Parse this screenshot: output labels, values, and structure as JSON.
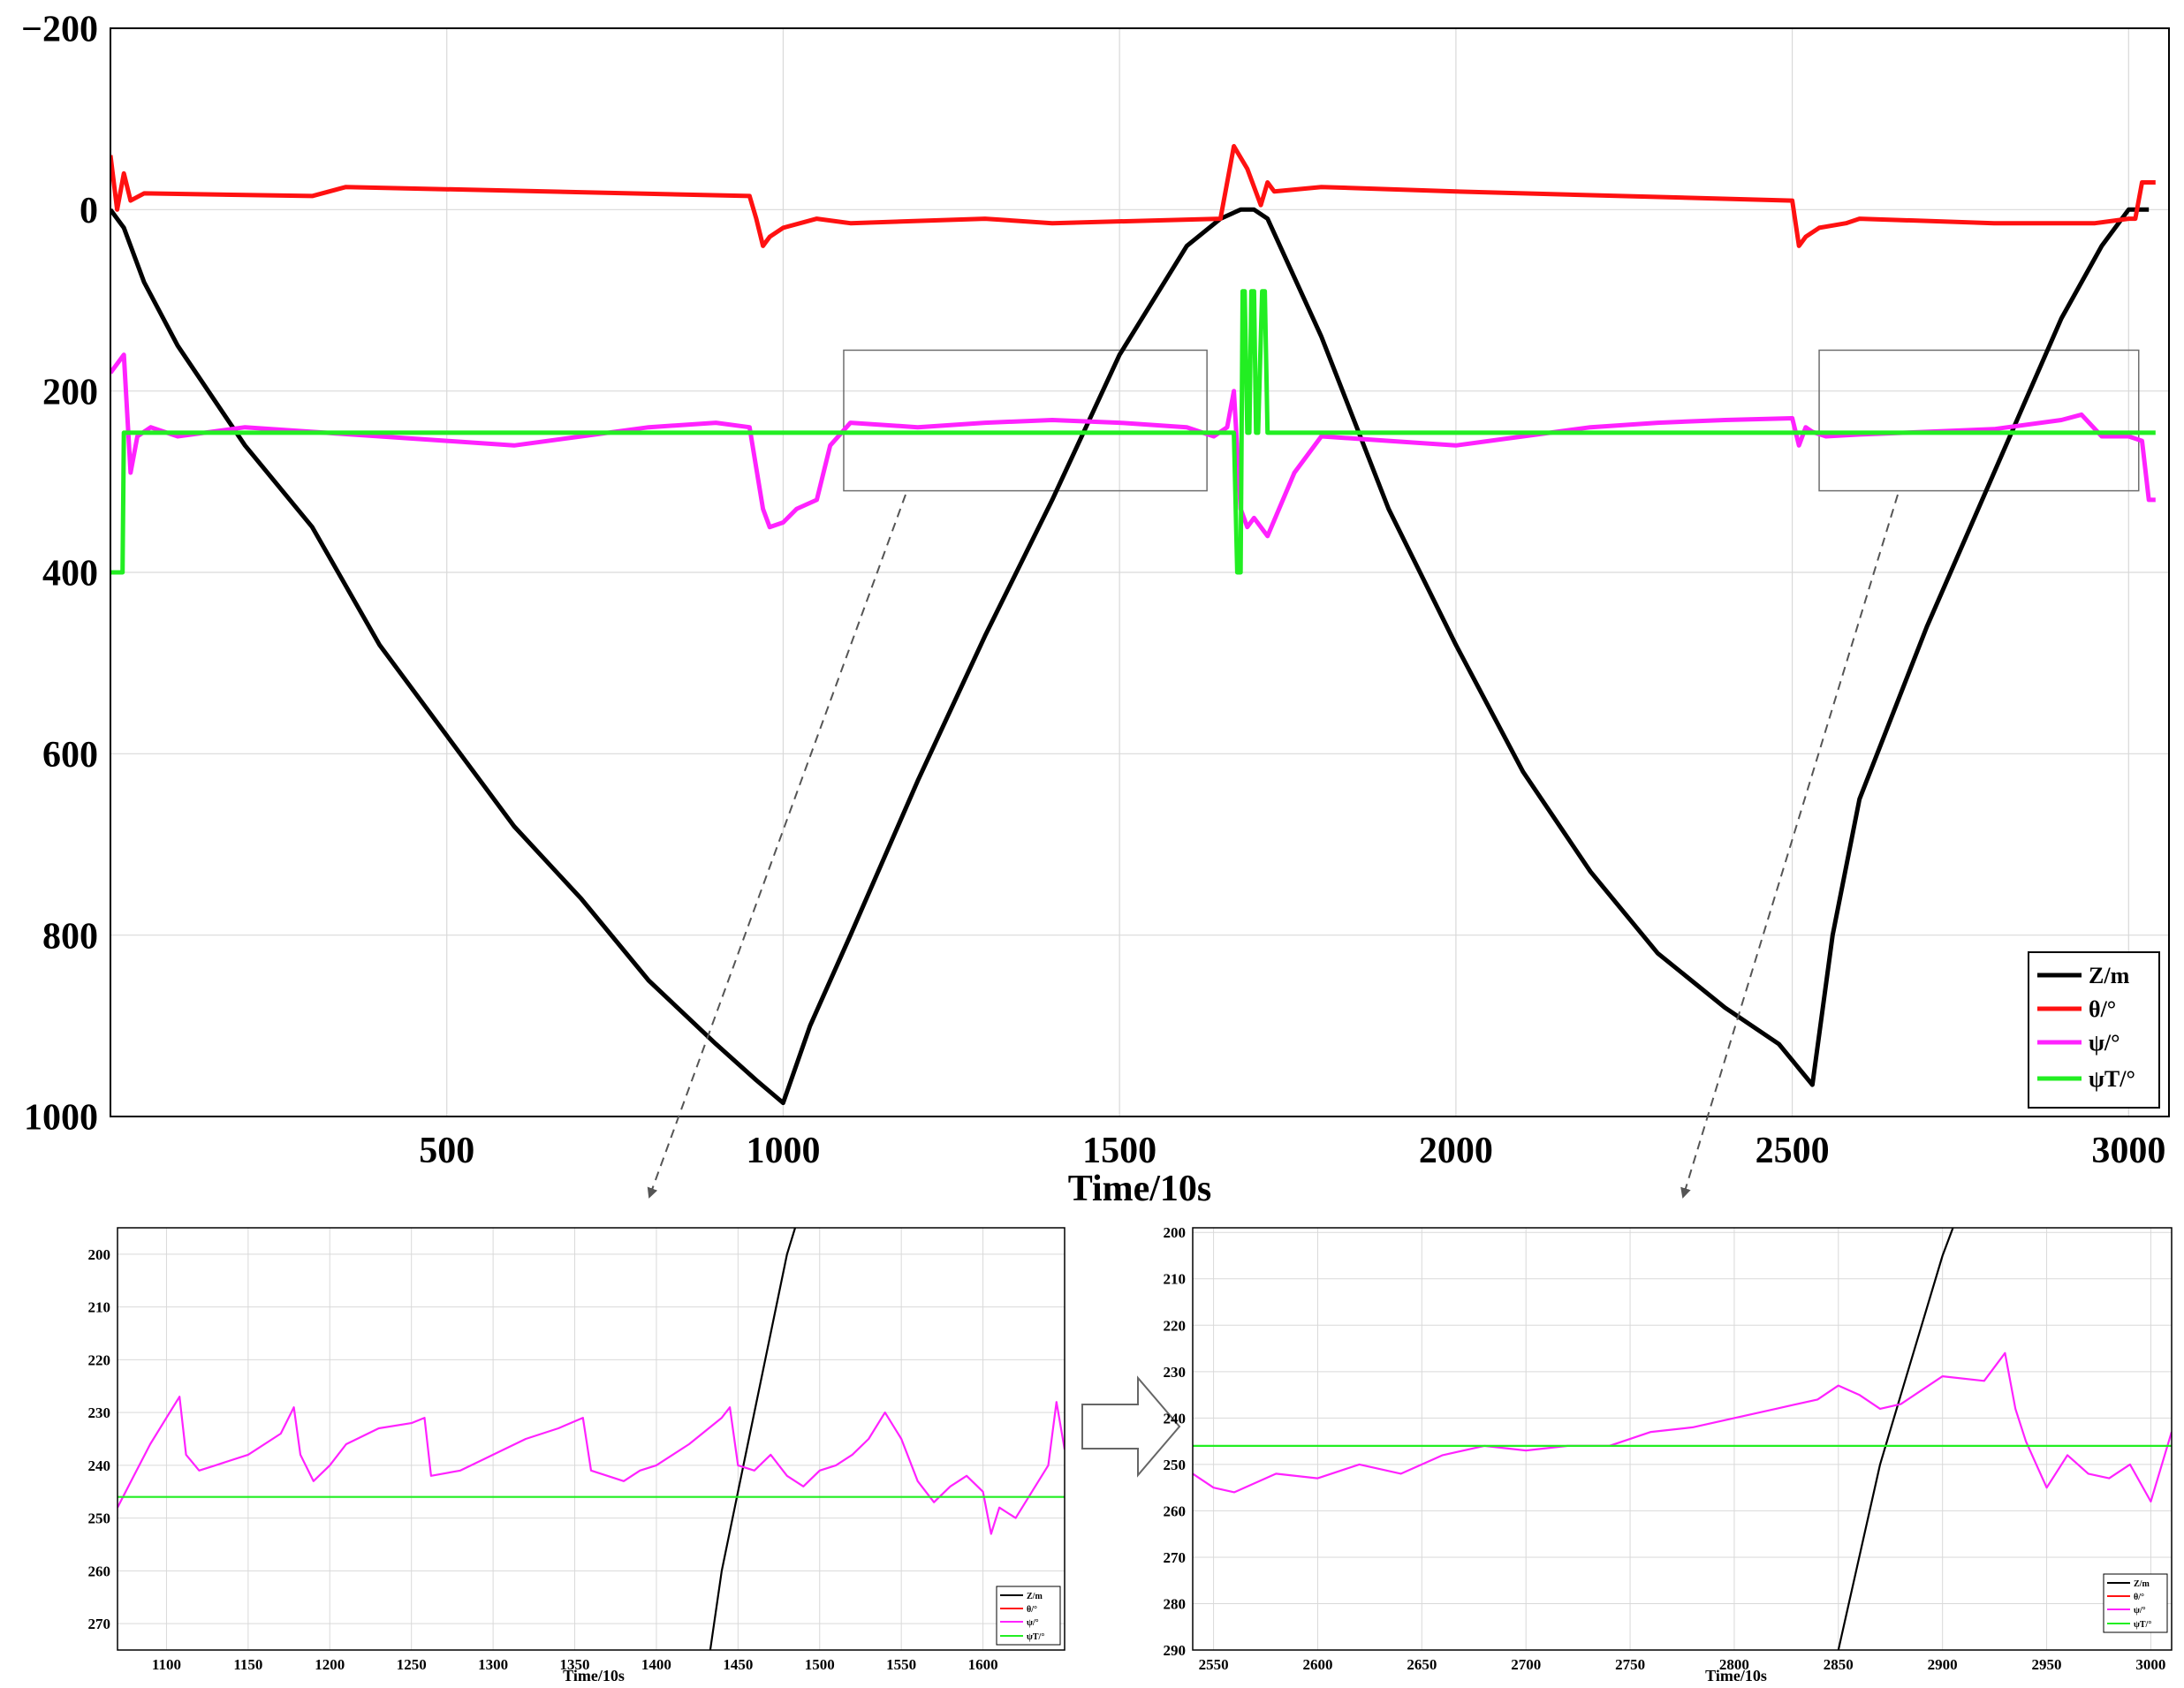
{
  "colors": {
    "z": "#000000",
    "theta": "#ff1111",
    "psi": "#ff22ff",
    "psi_t": "#22ee22",
    "grid": "#d9d9d9",
    "frame": "#000000",
    "zoom_box": "#6e6e6e"
  },
  "chart_data": [
    {
      "id": "main",
      "type": "line",
      "xlabel": "Time/10s",
      "ylabel": "",
      "xlim": [
        0,
        3060
      ],
      "ylim": [
        -200,
        1000
      ],
      "y_inverted": true,
      "x_ticks": [
        "500",
        "1000",
        "1500",
        "2000",
        "2500",
        "3000"
      ],
      "x_tick_values": [
        500,
        1000,
        1500,
        2000,
        2500,
        3000
      ],
      "y_ticks": [
        "−200",
        "0",
        "200",
        "400",
        "600",
        "800",
        "1000"
      ],
      "y_tick_values": [
        -200,
        0,
        200,
        400,
        600,
        800,
        1000
      ],
      "grid": true,
      "legend_position": "bottom-right",
      "legend": [
        "Z/m",
        "θ/°",
        "ψ/°",
        "ψT/°"
      ],
      "series": [
        {
          "name": "Z/m",
          "color_key": "z",
          "x": [
            0,
            20,
            50,
            100,
            200,
            300,
            400,
            500,
            600,
            700,
            800,
            900,
            960,
            1000,
            1040,
            1100,
            1200,
            1300,
            1400,
            1500,
            1600,
            1650,
            1680,
            1700,
            1720,
            1800,
            1900,
            2000,
            2100,
            2200,
            2300,
            2400,
            2480,
            2530,
            2560,
            2600,
            2700,
            2800,
            2900,
            2960,
            3000,
            3030
          ],
          "y": [
            0,
            20,
            80,
            150,
            260,
            350,
            480,
            580,
            680,
            760,
            850,
            920,
            960,
            985,
            900,
            800,
            630,
            470,
            320,
            160,
            40,
            10,
            0,
            0,
            10,
            140,
            330,
            480,
            620,
            730,
            820,
            880,
            920,
            965,
            800,
            650,
            460,
            290,
            120,
            40,
            0,
            0
          ]
        },
        {
          "name": "θ/°",
          "color_key": "theta",
          "x": [
            0,
            10,
            20,
            30,
            50,
            300,
            350,
            950,
            960,
            970,
            980,
            1000,
            1050,
            1100,
            1300,
            1400,
            1650,
            1670,
            1690,
            1710,
            1720,
            1730,
            1800,
            2000,
            2500,
            2510,
            2520,
            2540,
            2580,
            2600,
            2800,
            2950,
            3000,
            3010,
            3020,
            3040
          ],
          "y": [
            -60,
            0,
            -40,
            -10,
            -18,
            -15,
            -25,
            -15,
            10,
            40,
            30,
            20,
            10,
            15,
            10,
            15,
            10,
            -70,
            -45,
            -5,
            -30,
            -20,
            -25,
            -20,
            -10,
            40,
            30,
            20,
            15,
            10,
            15,
            15,
            10,
            10,
            -30,
            -30
          ]
        },
        {
          "name": "ψ/°",
          "color_key": "psi",
          "x": [
            0,
            10,
            20,
            30,
            40,
            60,
            100,
            200,
            300,
            400,
            500,
            600,
            700,
            800,
            900,
            950,
            970,
            980,
            1000,
            1020,
            1050,
            1070,
            1100,
            1200,
            1300,
            1400,
            1500,
            1600,
            1640,
            1660,
            1670,
            1680,
            1690,
            1700,
            1720,
            1760,
            1800,
            1900,
            2000,
            2100,
            2200,
            2300,
            2400,
            2500,
            2510,
            2520,
            2530,
            2550,
            2600,
            2700,
            2800,
            2900,
            2930,
            2960,
            3000,
            3020,
            3030,
            3040
          ],
          "y": [
            180,
            170,
            160,
            290,
            250,
            240,
            250,
            240,
            245,
            250,
            255,
            260,
            250,
            240,
            235,
            240,
            330,
            350,
            345,
            330,
            320,
            260,
            235,
            240,
            235,
            232,
            235,
            240,
            250,
            240,
            200,
            330,
            350,
            340,
            360,
            290,
            250,
            255,
            260,
            250,
            240,
            235,
            232,
            230,
            260,
            240,
            245,
            250,
            248,
            245,
            242,
            232,
            226,
            250,
            250,
            255,
            320,
            320
          ]
        },
        {
          "name": "ψT/°",
          "color_key": "psi_t",
          "x": [
            0,
            18,
            20,
            40,
            1670,
            1675,
            1680,
            1683,
            1686,
            1690,
            1693,
            1696,
            1700,
            1703,
            1706,
            1712,
            1716,
            1720,
            3040
          ],
          "y": [
            400,
            400,
            246,
            246,
            246,
            400,
            400,
            90,
            90,
            246,
            246,
            90,
            90,
            246,
            246,
            90,
            90,
            246,
            246
          ]
        }
      ],
      "zoom_boxes": [
        {
          "x_range": [
            1090,
            1630
          ],
          "y_range": [
            155,
            310
          ]
        },
        {
          "x_range": [
            2540,
            3015
          ],
          "y_range": [
            155,
            310
          ]
        }
      ]
    },
    {
      "id": "zoom-left",
      "type": "line",
      "xlabel": "Time/10s",
      "xlim": [
        1070,
        1650
      ],
      "ylim": [
        195,
        275
      ],
      "y_inverted": true,
      "x_ticks": [
        "1100",
        "1150",
        "1200",
        "1250",
        "1300",
        "1350",
        "1400",
        "1450",
        "1500",
        "1550",
        "1600"
      ],
      "x_tick_values": [
        1100,
        1150,
        1200,
        1250,
        1300,
        1350,
        1400,
        1450,
        1500,
        1550,
        1600
      ],
      "y_ticks": [
        "200",
        "210",
        "220",
        "230",
        "240",
        "250",
        "260",
        "270"
      ],
      "y_tick_values": [
        200,
        210,
        220,
        230,
        240,
        250,
        260,
        270
      ],
      "grid": true,
      "legend_position": "bottom-right",
      "legend": [
        "Z/m",
        "θ/°",
        "ψ/°",
        "ψT/°"
      ],
      "series": [
        {
          "name": "Z/m",
          "color_key": "z",
          "x": [
            1433,
            1440,
            1450,
            1460,
            1470,
            1480,
            1485
          ],
          "y": [
            275,
            260,
            245,
            230,
            215,
            200,
            195
          ]
        },
        {
          "name": "ψ/°",
          "color_key": "psi",
          "x": [
            1070,
            1080,
            1090,
            1100,
            1108,
            1112,
            1120,
            1130,
            1150,
            1170,
            1178,
            1182,
            1190,
            1200,
            1210,
            1230,
            1250,
            1258,
            1262,
            1280,
            1300,
            1320,
            1340,
            1355,
            1360,
            1370,
            1380,
            1390,
            1400,
            1420,
            1440,
            1445,
            1450,
            1460,
            1470,
            1480,
            1490,
            1500,
            1510,
            1520,
            1530,
            1540,
            1550,
            1560,
            1570,
            1580,
            1590,
            1600,
            1605,
            1610,
            1620,
            1630,
            1640,
            1645,
            1650
          ],
          "y": [
            248,
            242,
            236,
            231,
            227,
            238,
            241,
            240,
            238,
            234,
            229,
            238,
            243,
            240,
            236,
            233,
            232,
            231,
            242,
            241,
            238,
            235,
            233,
            231,
            241,
            242,
            243,
            241,
            240,
            236,
            231,
            229,
            240,
            241,
            238,
            242,
            244,
            241,
            240,
            238,
            235,
            230,
            235,
            243,
            247,
            244,
            242,
            245,
            253,
            248,
            250,
            245,
            240,
            228,
            237
          ]
        },
        {
          "name": "ψT/°",
          "color_key": "psi_t",
          "x": [
            1070,
            1650
          ],
          "y": [
            246,
            246
          ]
        }
      ]
    },
    {
      "id": "zoom-right",
      "type": "line",
      "xlabel": "Time/10s",
      "xlim": [
        2540,
        3010
      ],
      "ylim": [
        199,
        290
      ],
      "y_inverted": true,
      "x_ticks": [
        "2550",
        "2600",
        "2650",
        "2700",
        "2750",
        "2800",
        "2850",
        "2900",
        "2950",
        "3000"
      ],
      "x_tick_values": [
        2550,
        2600,
        2650,
        2700,
        2750,
        2800,
        2850,
        2900,
        2950,
        3000
      ],
      "y_ticks": [
        "200",
        "210",
        "220",
        "230",
        "240",
        "250",
        "260",
        "270",
        "280",
        "290"
      ],
      "y_tick_values": [
        200,
        210,
        220,
        230,
        240,
        250,
        260,
        270,
        280,
        290
      ],
      "grid": true,
      "legend_position": "bottom-right",
      "legend": [
        "Z/m",
        "θ/°",
        "ψ/°",
        "ψT/°"
      ],
      "series": [
        {
          "name": "Z/m",
          "color_key": "z",
          "x": [
            2850,
            2860,
            2870,
            2880,
            2890,
            2900,
            2905
          ],
          "y": [
            290,
            270,
            250,
            235,
            220,
            205,
            199
          ]
        },
        {
          "name": "ψ/°",
          "color_key": "psi",
          "x": [
            2540,
            2550,
            2560,
            2580,
            2600,
            2620,
            2640,
            2660,
            2680,
            2700,
            2720,
            2740,
            2760,
            2780,
            2800,
            2820,
            2840,
            2850,
            2860,
            2870,
            2880,
            2890,
            2900,
            2920,
            2930,
            2935,
            2940,
            2945,
            2950,
            2960,
            2970,
            2980,
            2990,
            3000,
            3010
          ],
          "y": [
            252,
            255,
            256,
            252,
            253,
            250,
            252,
            248,
            246,
            247,
            246,
            246,
            243,
            242,
            240,
            238,
            236,
            233,
            235,
            238,
            237,
            234,
            231,
            232,
            226,
            238,
            245,
            250,
            255,
            248,
            252,
            253,
            250,
            258,
            243
          ]
        },
        {
          "name": "ψT/°",
          "color_key": "psi_t",
          "x": [
            2540,
            3010
          ],
          "y": [
            246,
            246
          ]
        }
      ]
    }
  ]
}
